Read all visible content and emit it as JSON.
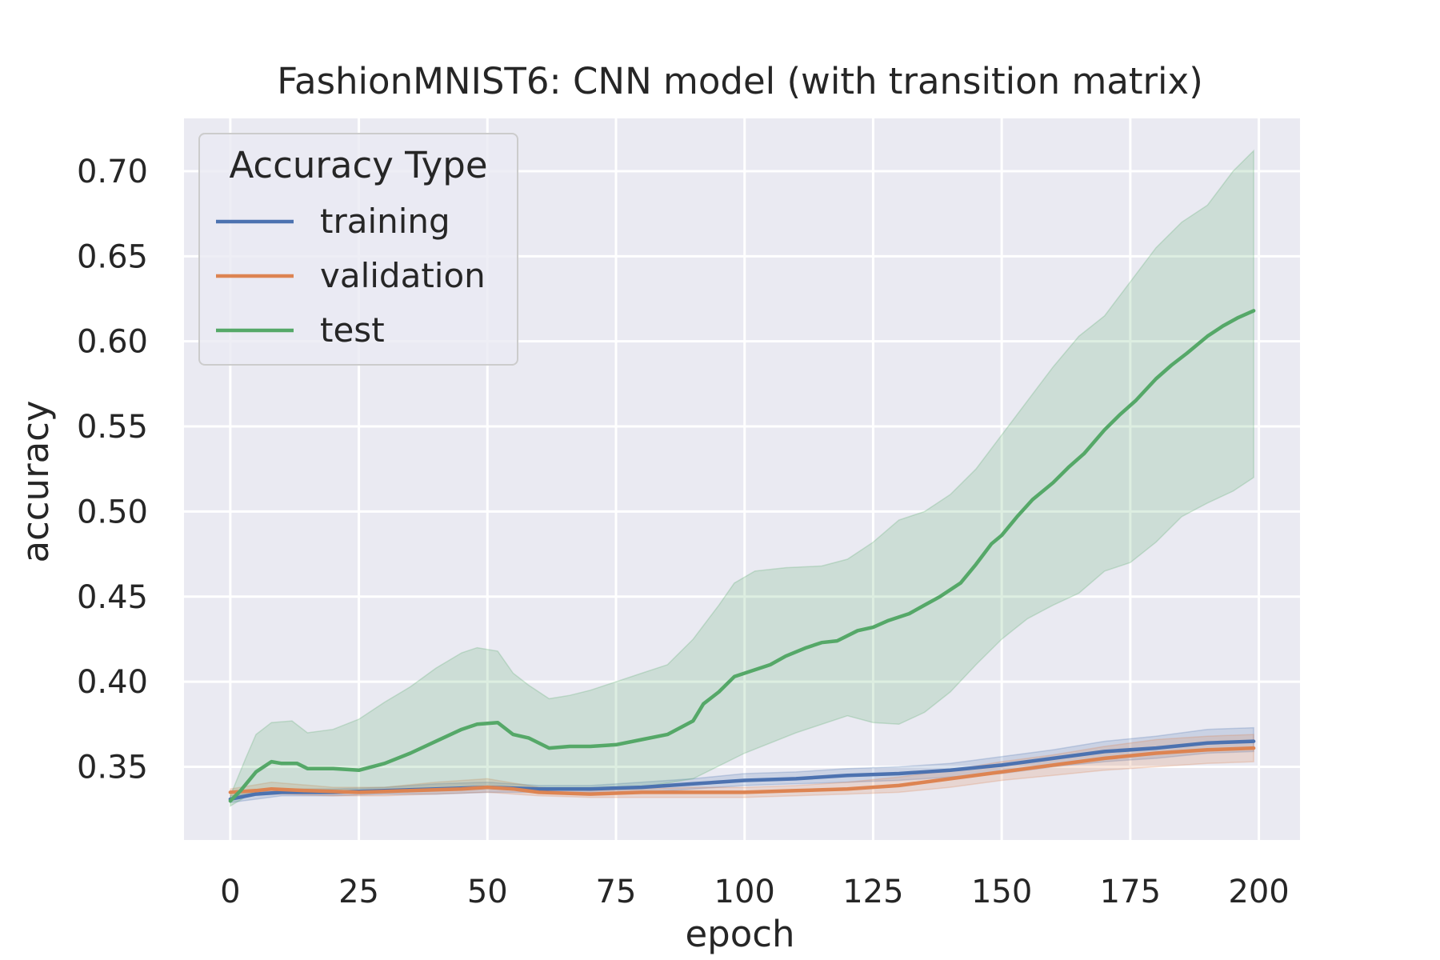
{
  "chart_data": {
    "type": "line",
    "title": "FashionMNIST6: CNN model (with transition matrix)",
    "xlabel": "epoch",
    "ylabel": "accuracy",
    "xlim": [
      -9,
      208
    ],
    "ylim": [
      0.307,
      0.731
    ],
    "xticks": [
      0,
      25,
      50,
      75,
      100,
      125,
      150,
      175,
      200
    ],
    "yticks": [
      0.35,
      0.4,
      0.45,
      0.5,
      0.55,
      0.6,
      0.65,
      0.7
    ],
    "ytick_labels": [
      "0.35",
      "0.40",
      "0.45",
      "0.50",
      "0.55",
      "0.60",
      "0.65",
      "0.70"
    ],
    "grid": true,
    "background": "#eaeaf2",
    "legend": {
      "title": "Accuracy Type",
      "position": "upper-left"
    },
    "series": [
      {
        "name": "training",
        "color": "#4c72b0",
        "mean": [
          [
            0,
            0.331
          ],
          [
            5,
            0.334
          ],
          [
            10,
            0.335
          ],
          [
            20,
            0.335
          ],
          [
            30,
            0.336
          ],
          [
            40,
            0.337
          ],
          [
            50,
            0.338
          ],
          [
            60,
            0.337
          ],
          [
            70,
            0.337
          ],
          [
            80,
            0.338
          ],
          [
            90,
            0.34
          ],
          [
            100,
            0.342
          ],
          [
            110,
            0.343
          ],
          [
            120,
            0.345
          ],
          [
            130,
            0.346
          ],
          [
            140,
            0.348
          ],
          [
            150,
            0.351
          ],
          [
            160,
            0.355
          ],
          [
            170,
            0.359
          ],
          [
            180,
            0.361
          ],
          [
            190,
            0.364
          ],
          [
            199,
            0.365
          ]
        ],
        "lower": [
          [
            0,
            0.329
          ],
          [
            10,
            0.333
          ],
          [
            20,
            0.333
          ],
          [
            30,
            0.334
          ],
          [
            40,
            0.334
          ],
          [
            50,
            0.335
          ],
          [
            60,
            0.335
          ],
          [
            70,
            0.335
          ],
          [
            80,
            0.335
          ],
          [
            90,
            0.337
          ],
          [
            100,
            0.339
          ],
          [
            110,
            0.34
          ],
          [
            120,
            0.341
          ],
          [
            130,
            0.342
          ],
          [
            140,
            0.344
          ],
          [
            150,
            0.346
          ],
          [
            160,
            0.35
          ],
          [
            170,
            0.353
          ],
          [
            180,
            0.355
          ],
          [
            190,
            0.358
          ],
          [
            199,
            0.359
          ]
        ],
        "upper": [
          [
            0,
            0.333
          ],
          [
            10,
            0.337
          ],
          [
            20,
            0.337
          ],
          [
            30,
            0.338
          ],
          [
            40,
            0.34
          ],
          [
            50,
            0.341
          ],
          [
            60,
            0.339
          ],
          [
            70,
            0.339
          ],
          [
            80,
            0.341
          ],
          [
            90,
            0.343
          ],
          [
            100,
            0.346
          ],
          [
            110,
            0.347
          ],
          [
            120,
            0.349
          ],
          [
            130,
            0.35
          ],
          [
            140,
            0.352
          ],
          [
            150,
            0.356
          ],
          [
            160,
            0.36
          ],
          [
            170,
            0.365
          ],
          [
            180,
            0.368
          ],
          [
            190,
            0.372
          ],
          [
            199,
            0.373
          ]
        ]
      },
      {
        "name": "validation",
        "color": "#dd8452",
        "mean": [
          [
            0,
            0.335
          ],
          [
            5,
            0.336
          ],
          [
            8,
            0.337
          ],
          [
            15,
            0.336
          ],
          [
            25,
            0.335
          ],
          [
            35,
            0.336
          ],
          [
            45,
            0.337
          ],
          [
            50,
            0.338
          ],
          [
            55,
            0.337
          ],
          [
            60,
            0.335
          ],
          [
            70,
            0.334
          ],
          [
            80,
            0.335
          ],
          [
            90,
            0.335
          ],
          [
            100,
            0.335
          ],
          [
            110,
            0.336
          ],
          [
            120,
            0.337
          ],
          [
            130,
            0.339
          ],
          [
            140,
            0.343
          ],
          [
            150,
            0.347
          ],
          [
            160,
            0.351
          ],
          [
            170,
            0.355
          ],
          [
            180,
            0.358
          ],
          [
            190,
            0.36
          ],
          [
            199,
            0.361
          ]
        ],
        "lower": [
          [
            0,
            0.333
          ],
          [
            10,
            0.334
          ],
          [
            20,
            0.333
          ],
          [
            30,
            0.333
          ],
          [
            40,
            0.334
          ],
          [
            50,
            0.335
          ],
          [
            60,
            0.333
          ],
          [
            70,
            0.332
          ],
          [
            80,
            0.332
          ],
          [
            90,
            0.332
          ],
          [
            100,
            0.332
          ],
          [
            110,
            0.333
          ],
          [
            120,
            0.334
          ],
          [
            130,
            0.335
          ],
          [
            140,
            0.338
          ],
          [
            150,
            0.342
          ],
          [
            160,
            0.345
          ],
          [
            170,
            0.348
          ],
          [
            180,
            0.35
          ],
          [
            190,
            0.352
          ],
          [
            199,
            0.353
          ]
        ],
        "upper": [
          [
            0,
            0.337
          ],
          [
            8,
            0.341
          ],
          [
            20,
            0.338
          ],
          [
            30,
            0.338
          ],
          [
            40,
            0.341
          ],
          [
            50,
            0.343
          ],
          [
            60,
            0.338
          ],
          [
            70,
            0.336
          ],
          [
            80,
            0.337
          ],
          [
            90,
            0.338
          ],
          [
            100,
            0.338
          ],
          [
            110,
            0.339
          ],
          [
            120,
            0.341
          ],
          [
            130,
            0.344
          ],
          [
            140,
            0.348
          ],
          [
            150,
            0.353
          ],
          [
            160,
            0.357
          ],
          [
            170,
            0.362
          ],
          [
            180,
            0.366
          ],
          [
            190,
            0.368
          ],
          [
            199,
            0.369
          ]
        ]
      },
      {
        "name": "test",
        "color": "#55a868",
        "mean": [
          [
            0,
            0.33
          ],
          [
            2,
            0.336
          ],
          [
            5,
            0.347
          ],
          [
            8,
            0.353
          ],
          [
            10,
            0.352
          ],
          [
            13,
            0.352
          ],
          [
            15,
            0.349
          ],
          [
            20,
            0.349
          ],
          [
            25,
            0.348
          ],
          [
            30,
            0.352
          ],
          [
            35,
            0.358
          ],
          [
            40,
            0.365
          ],
          [
            45,
            0.372
          ],
          [
            48,
            0.375
          ],
          [
            52,
            0.376
          ],
          [
            55,
            0.369
          ],
          [
            58,
            0.367
          ],
          [
            62,
            0.361
          ],
          [
            66,
            0.362
          ],
          [
            70,
            0.362
          ],
          [
            75,
            0.363
          ],
          [
            80,
            0.366
          ],
          [
            85,
            0.369
          ],
          [
            90,
            0.377
          ],
          [
            92,
            0.387
          ],
          [
            95,
            0.394
          ],
          [
            98,
            0.403
          ],
          [
            102,
            0.407
          ],
          [
            105,
            0.41
          ],
          [
            108,
            0.415
          ],
          [
            112,
            0.42
          ],
          [
            115,
            0.423
          ],
          [
            118,
            0.424
          ],
          [
            122,
            0.43
          ],
          [
            125,
            0.432
          ],
          [
            128,
            0.436
          ],
          [
            132,
            0.44
          ],
          [
            135,
            0.445
          ],
          [
            138,
            0.45
          ],
          [
            142,
            0.458
          ],
          [
            145,
            0.469
          ],
          [
            148,
            0.481
          ],
          [
            150,
            0.486
          ],
          [
            153,
            0.497
          ],
          [
            156,
            0.507
          ],
          [
            160,
            0.517
          ],
          [
            163,
            0.526
          ],
          [
            166,
            0.534
          ],
          [
            170,
            0.548
          ],
          [
            173,
            0.557
          ],
          [
            176,
            0.565
          ],
          [
            180,
            0.578
          ],
          [
            183,
            0.586
          ],
          [
            186,
            0.593
          ],
          [
            190,
            0.603
          ],
          [
            193,
            0.609
          ],
          [
            196,
            0.614
          ],
          [
            199,
            0.618
          ]
        ],
        "lower": [
          [
            0,
            0.327
          ],
          [
            5,
            0.336
          ],
          [
            10,
            0.337
          ],
          [
            20,
            0.336
          ],
          [
            30,
            0.336
          ],
          [
            40,
            0.336
          ],
          [
            50,
            0.338
          ],
          [
            60,
            0.337
          ],
          [
            70,
            0.337
          ],
          [
            80,
            0.338
          ],
          [
            90,
            0.343
          ],
          [
            100,
            0.358
          ],
          [
            110,
            0.37
          ],
          [
            120,
            0.38
          ],
          [
            125,
            0.376
          ],
          [
            130,
            0.375
          ],
          [
            135,
            0.382
          ],
          [
            140,
            0.394
          ],
          [
            145,
            0.41
          ],
          [
            150,
            0.425
          ],
          [
            155,
            0.437
          ],
          [
            160,
            0.445
          ],
          [
            165,
            0.452
          ],
          [
            170,
            0.465
          ],
          [
            175,
            0.47
          ],
          [
            180,
            0.482
          ],
          [
            185,
            0.497
          ],
          [
            190,
            0.505
          ],
          [
            195,
            0.512
          ],
          [
            199,
            0.52
          ]
        ],
        "upper": [
          [
            0,
            0.333
          ],
          [
            3,
            0.355
          ],
          [
            5,
            0.369
          ],
          [
            8,
            0.376
          ],
          [
            12,
            0.377
          ],
          [
            15,
            0.37
          ],
          [
            20,
            0.372
          ],
          [
            25,
            0.378
          ],
          [
            30,
            0.388
          ],
          [
            35,
            0.397
          ],
          [
            40,
            0.408
          ],
          [
            45,
            0.417
          ],
          [
            48,
            0.42
          ],
          [
            52,
            0.418
          ],
          [
            55,
            0.405
          ],
          [
            58,
            0.398
          ],
          [
            62,
            0.39
          ],
          [
            66,
            0.392
          ],
          [
            70,
            0.395
          ],
          [
            75,
            0.4
          ],
          [
            80,
            0.405
          ],
          [
            85,
            0.41
          ],
          [
            90,
            0.425
          ],
          [
            95,
            0.445
          ],
          [
            98,
            0.458
          ],
          [
            102,
            0.465
          ],
          [
            108,
            0.467
          ],
          [
            115,
            0.468
          ],
          [
            120,
            0.472
          ],
          [
            125,
            0.482
          ],
          [
            130,
            0.495
          ],
          [
            135,
            0.5
          ],
          [
            140,
            0.51
          ],
          [
            145,
            0.525
          ],
          [
            150,
            0.545
          ],
          [
            155,
            0.565
          ],
          [
            160,
            0.585
          ],
          [
            165,
            0.603
          ],
          [
            170,
            0.615
          ],
          [
            175,
            0.635
          ],
          [
            180,
            0.655
          ],
          [
            185,
            0.67
          ],
          [
            190,
            0.68
          ],
          [
            195,
            0.7
          ],
          [
            199,
            0.712
          ]
        ]
      }
    ]
  }
}
